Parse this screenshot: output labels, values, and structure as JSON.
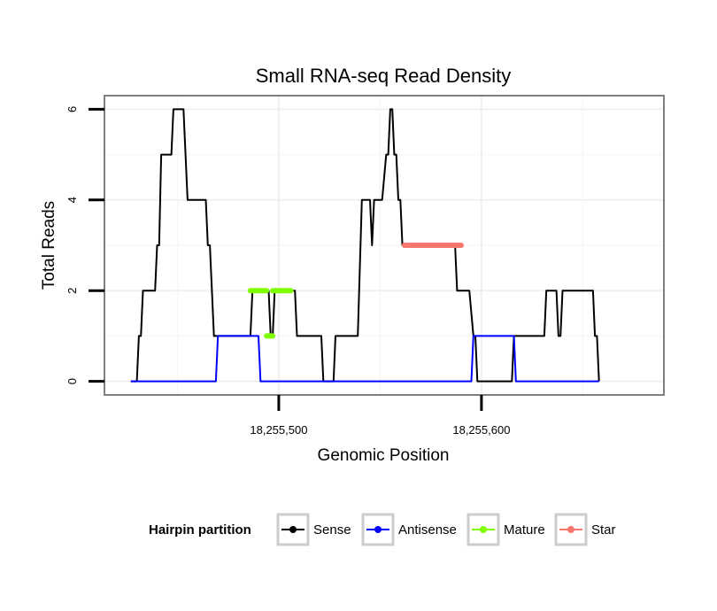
{
  "chart_data": {
    "type": "line",
    "title": "Small RNA-seq Read Density",
    "xlabel": "Genomic Position",
    "ylabel": "Total Reads",
    "xlim": [
      18255414,
      18255690
    ],
    "ylim": [
      -0.3,
      6.3
    ],
    "x_ticks": [
      18255500,
      18255600
    ],
    "x_tick_labels": [
      "18,255,500",
      "18,255,600"
    ],
    "y_ticks": [
      0,
      2,
      4,
      6
    ],
    "y_tick_labels": [
      "0",
      "2",
      "4",
      "6"
    ],
    "grid": true,
    "legend": {
      "title": "Hairpin partition",
      "placement": "bottom",
      "entries": [
        "Sense",
        "Antisense",
        "Mature",
        "Star"
      ]
    },
    "series": [
      {
        "name": "Sense",
        "color": "#000000",
        "points": [
          [
            18255427,
            0
          ],
          [
            18255430,
            0
          ],
          [
            18255431,
            1
          ],
          [
            18255432,
            1
          ],
          [
            18255433,
            2
          ],
          [
            18255439,
            2
          ],
          [
            18255440,
            3
          ],
          [
            18255441,
            3
          ],
          [
            18255442,
            5
          ],
          [
            18255447,
            5
          ],
          [
            18255448,
            6
          ],
          [
            18255453,
            6
          ],
          [
            18255454,
            5
          ],
          [
            18255455,
            4
          ],
          [
            18255464,
            4
          ],
          [
            18255465,
            3
          ],
          [
            18255466,
            3
          ],
          [
            18255468,
            1
          ],
          [
            18255486,
            1
          ],
          [
            18255487,
            2
          ],
          [
            18255495,
            2
          ],
          [
            18255496,
            1
          ],
          [
            18255497,
            1
          ],
          [
            18255498,
            2
          ],
          [
            18255508,
            2
          ],
          [
            18255509,
            1
          ],
          [
            18255521,
            1
          ],
          [
            18255522,
            0
          ],
          [
            18255527,
            0
          ],
          [
            18255528,
            1
          ],
          [
            18255539,
            1
          ],
          [
            18255541,
            4
          ],
          [
            18255545,
            4
          ],
          [
            18255546,
            3
          ],
          [
            18255547,
            4
          ],
          [
            18255551,
            4
          ],
          [
            18255553,
            5
          ],
          [
            18255554,
            5
          ],
          [
            18255555,
            6
          ],
          [
            18255556,
            6
          ],
          [
            18255557,
            5
          ],
          [
            18255558,
            5
          ],
          [
            18255559,
            4
          ],
          [
            18255560,
            4
          ],
          [
            18255561,
            3
          ],
          [
            18255587,
            3
          ],
          [
            18255588,
            2
          ],
          [
            18255594,
            2
          ],
          [
            18255596,
            1
          ],
          [
            18255597,
            1
          ],
          [
            18255598,
            0
          ],
          [
            18255615,
            0
          ],
          [
            18255616,
            1
          ],
          [
            18255631,
            1
          ],
          [
            18255632,
            2
          ],
          [
            18255637,
            2
          ],
          [
            18255638,
            1
          ],
          [
            18255639,
            1
          ],
          [
            18255640,
            2
          ],
          [
            18255655,
            2
          ],
          [
            18255656,
            1
          ],
          [
            18255657,
            1
          ],
          [
            18255658,
            0
          ]
        ]
      },
      {
        "name": "Antisense",
        "color": "#0000ff",
        "points": [
          [
            18255427,
            0
          ],
          [
            18255469,
            0
          ],
          [
            18255470,
            1
          ],
          [
            18255490,
            1
          ],
          [
            18255491,
            0
          ],
          [
            18255595,
            0
          ],
          [
            18255596,
            1
          ],
          [
            18255616,
            1
          ],
          [
            18255617,
            0
          ],
          [
            18255658,
            0
          ]
        ]
      },
      {
        "name": "Mature",
        "color": "#7fff00",
        "segments": [
          [
            [
              18255486,
              2
            ],
            [
              18255494,
              2
            ]
          ],
          [
            [
              18255494,
              1
            ],
            [
              18255497,
              1
            ]
          ],
          [
            [
              18255497,
              2
            ],
            [
              18255506,
              2
            ]
          ]
        ]
      },
      {
        "name": "Star",
        "color": "#f8766d",
        "segments": [
          [
            [
              18255562,
              3
            ],
            [
              18255590,
              3
            ]
          ]
        ]
      }
    ]
  }
}
